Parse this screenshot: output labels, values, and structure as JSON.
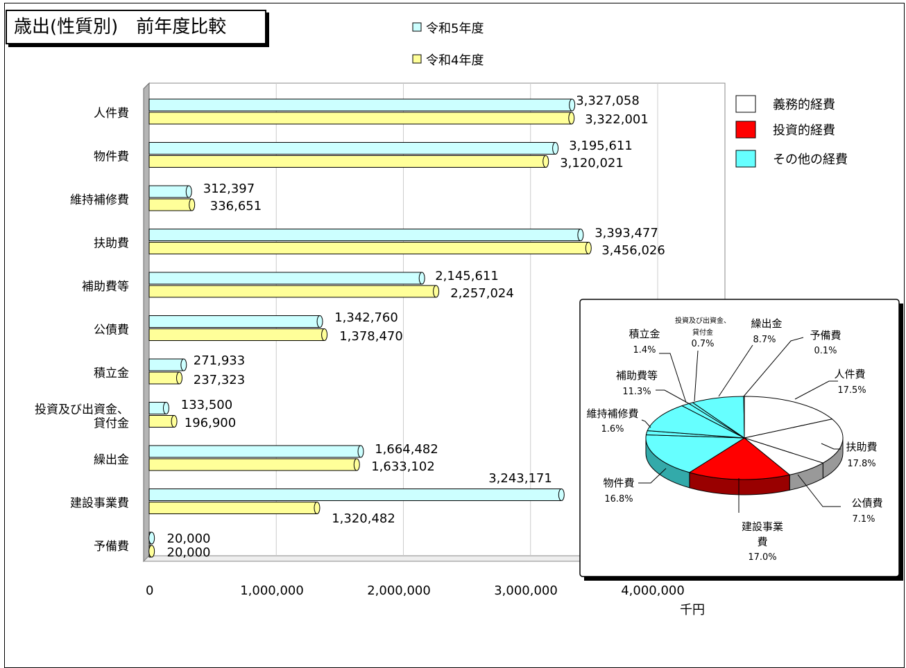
{
  "chart_data": [
    {
      "type": "bar",
      "orientation": "horizontal",
      "title": "歳出(性質別)　前年度比較",
      "unit_label": "千円",
      "categories": [
        "人件費",
        "物件費",
        "維持補修費",
        "扶助費",
        "補助費等",
        "公債費",
        "積立金",
        "投資及び出資金、\n貸付金",
        "繰出金",
        "建設事業費",
        "予備費"
      ],
      "series": [
        {
          "name": "令和5年度",
          "color": "#ccffff",
          "values": [
            3327058,
            3195611,
            312397,
            3393477,
            2145611,
            1342760,
            271933,
            133500,
            1664482,
            3243171,
            20000
          ],
          "labels": [
            "3,327,058",
            "3,195,611",
            "312,397",
            "3,393,477",
            "2,145,611",
            "1,342,760",
            "271,933",
            "133,500",
            "1,664,482",
            "3,243,171",
            "20,000"
          ]
        },
        {
          "name": "令和4年度",
          "color": "#ffff99",
          "values": [
            3322001,
            3120021,
            336651,
            3456026,
            2257024,
            1378470,
            237323,
            196900,
            1633102,
            1320482,
            20000
          ],
          "labels": [
            "3,322,001",
            "3,120,021",
            "336,651",
            "3,456,026",
            "2,257,024",
            "1,378,470",
            "237,323",
            "196,900",
            "1,633,102",
            "1,320,482",
            "20,000"
          ]
        }
      ],
      "xlim": [
        0,
        4000000
      ],
      "xticks": [
        "0",
        "1,000,000",
        "2,000,000",
        "3,000,000",
        "4,000,000"
      ],
      "grid": true,
      "legend": "top"
    },
    {
      "type": "pie",
      "slices": [
        {
          "label": "人件費",
          "value": 17.5,
          "text": "17.5%",
          "group": "義務的経費"
        },
        {
          "label": "扶助費",
          "value": 17.8,
          "text": "17.8%",
          "group": "義務的経費"
        },
        {
          "label": "公債費",
          "value": 7.1,
          "text": "7.1%",
          "group": "義務的経費"
        },
        {
          "label": "建設事業費",
          "value": 17.0,
          "text": "17.0%",
          "group": "投資的経費"
        },
        {
          "label": "物件費",
          "value": 16.8,
          "text": "16.8%",
          "group": "その他の経費"
        },
        {
          "label": "維持補修費",
          "value": 1.6,
          "text": "1.6%",
          "group": "その他の経費"
        },
        {
          "label": "補助費等",
          "value": 11.3,
          "text": "11.3%",
          "group": "その他の経費"
        },
        {
          "label": "積立金",
          "value": 1.4,
          "text": "1.4%",
          "group": "その他の経費"
        },
        {
          "label": "投資及び出資金、貸付金",
          "value": 0.7,
          "text": "0.7%",
          "group": "その他の経費"
        },
        {
          "label": "繰出金",
          "value": 8.7,
          "text": "8.7%",
          "group": "その他の経費"
        },
        {
          "label": "予備費",
          "value": 0.1,
          "text": "0.1%",
          "group": "その他の経費"
        }
      ],
      "legend": [
        {
          "label": "義務的経費",
          "color": "#ffffff"
        },
        {
          "label": "投資的経費",
          "color": "#ff0000"
        },
        {
          "label": "その他の経費",
          "color": "#66ffff"
        }
      ]
    }
  ]
}
